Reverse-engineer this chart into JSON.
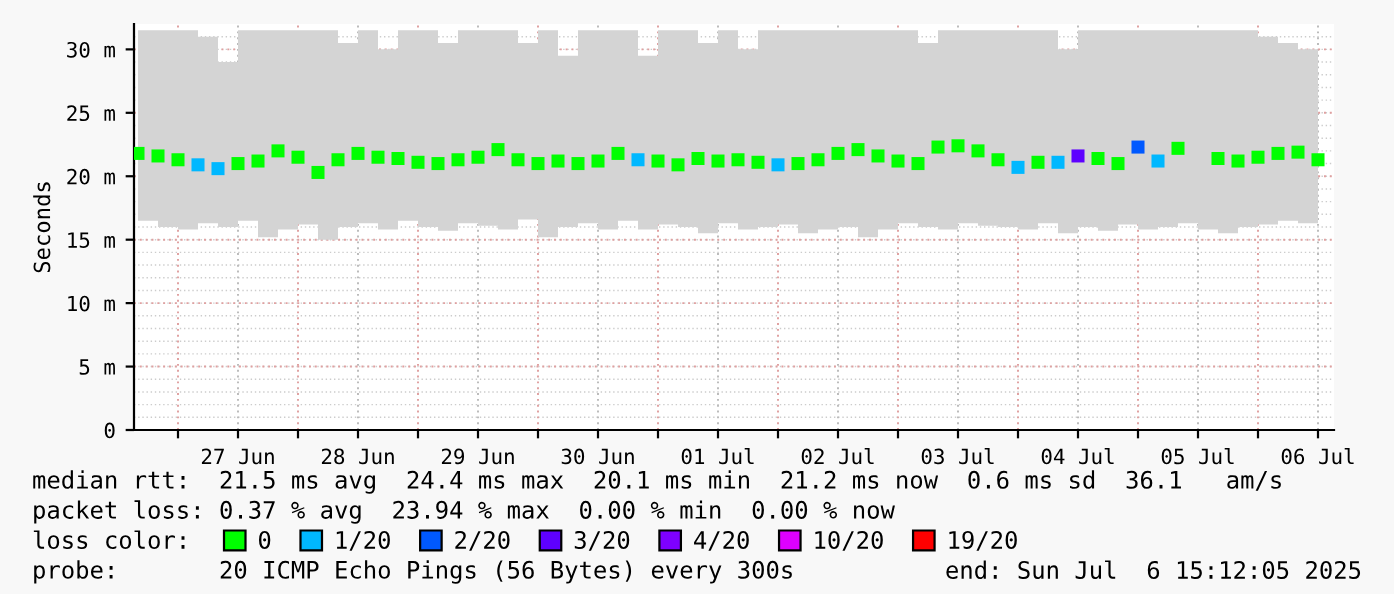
{
  "chart_data": {
    "type": "scatter",
    "marker": "square",
    "ylabel": "Seconds",
    "legend_title": "loss color:",
    "legend": "bottom",
    "grid": true,
    "x": [
      "2025-06-26T16:00",
      "2025-06-26T20:00",
      "2025-06-27T00:00",
      "2025-06-27T04:00",
      "2025-06-27T08:00",
      "2025-06-27T12:00",
      "2025-06-27T16:00",
      "2025-06-27T20:00",
      "2025-06-28T00:00",
      "2025-06-28T04:00",
      "2025-06-28T08:00",
      "2025-06-28T12:00",
      "2025-06-28T16:00",
      "2025-06-28T20:00",
      "2025-06-29T00:00",
      "2025-06-29T04:00",
      "2025-06-29T08:00",
      "2025-06-29T12:00",
      "2025-06-29T16:00",
      "2025-06-29T20:00",
      "2025-06-30T00:00",
      "2025-06-30T04:00",
      "2025-06-30T08:00",
      "2025-06-30T12:00",
      "2025-06-30T16:00",
      "2025-06-30T20:00",
      "2025-07-01T00:00",
      "2025-07-01T04:00",
      "2025-07-01T08:00",
      "2025-07-01T12:00",
      "2025-07-01T16:00",
      "2025-07-01T20:00",
      "2025-07-02T00:00",
      "2025-07-02T04:00",
      "2025-07-02T08:00",
      "2025-07-02T12:00",
      "2025-07-02T16:00",
      "2025-07-02T20:00",
      "2025-07-03T00:00",
      "2025-07-03T04:00",
      "2025-07-03T08:00",
      "2025-07-03T12:00",
      "2025-07-03T16:00",
      "2025-07-03T20:00",
      "2025-07-04T00:00",
      "2025-07-04T04:00",
      "2025-07-04T08:00",
      "2025-07-04T12:00",
      "2025-07-04T16:00",
      "2025-07-04T20:00",
      "2025-07-05T00:00",
      "2025-07-05T04:00",
      "2025-07-05T08:00",
      "2025-07-05T12:00",
      "2025-07-05T16:00",
      "2025-07-05T20:00",
      "2025-07-06T00:00",
      "2025-07-06T04:00",
      "2025-07-06T08:00",
      "2025-07-06T12:00"
    ],
    "series": [
      {
        "name": "0",
        "color": "#00ff00",
        "values": [
          21.8,
          21.6,
          21.3,
          null,
          null,
          21.0,
          21.2,
          22.0,
          21.5,
          20.3,
          21.3,
          21.8,
          21.5,
          21.4,
          21.1,
          21.0,
          21.3,
          21.5,
          22.1,
          21.3,
          21.0,
          21.2,
          21.0,
          21.2,
          21.8,
          null,
          21.2,
          20.9,
          21.4,
          21.2,
          21.3,
          21.1,
          null,
          21.0,
          21.3,
          21.8,
          22.1,
          21.6,
          21.2,
          21.0,
          22.3,
          22.4,
          22.0,
          21.3,
          null,
          21.1,
          null,
          null,
          21.4,
          21.0,
          null,
          null,
          22.2,
          null,
          21.4,
          21.2,
          21.5,
          21.8,
          21.9,
          21.3
        ],
        "lower": [
          16.5,
          16.0,
          15.8,
          16.3,
          16.0,
          16.5,
          15.2,
          15.8,
          16.2,
          15.0,
          16.0,
          16.3,
          15.8,
          16.5,
          16.0,
          15.7,
          16.3,
          16.1,
          15.8,
          16.6,
          15.2,
          16.0,
          16.3,
          15.8,
          16.5,
          15.8,
          16.2,
          16.0,
          15.5,
          16.3,
          15.8,
          16.0,
          16.2,
          15.5,
          15.8,
          16.0,
          15.2,
          15.8,
          16.3,
          16.0,
          15.8,
          16.3,
          16.1,
          16.0,
          15.8,
          16.3,
          15.5,
          16.0,
          15.7,
          16.2,
          15.8,
          16.0,
          16.3,
          15.8,
          15.5,
          16.0,
          16.2,
          16.5,
          16.3,
          16.5
        ],
        "upper": [
          31.5,
          31.5,
          31.5,
          31.0,
          29.0,
          31.5,
          31.5,
          31.5,
          31.5,
          31.5,
          30.5,
          31.5,
          30.0,
          31.5,
          31.5,
          30.5,
          31.5,
          31.5,
          31.5,
          30.5,
          31.5,
          29.5,
          31.5,
          31.5,
          31.5,
          29.5,
          31.5,
          31.5,
          30.5,
          31.5,
          30.0,
          31.5,
          31.5,
          31.5,
          31.5,
          31.5,
          31.5,
          31.5,
          31.5,
          30.5,
          31.5,
          31.5,
          31.5,
          31.5,
          31.5,
          31.5,
          30.0,
          31.5,
          31.5,
          31.5,
          31.5,
          31.5,
          31.5,
          31.5,
          31.5,
          31.5,
          31.0,
          30.5,
          30.0,
          29.0
        ]
      },
      {
        "name": "1/20",
        "color": "#00b8ff",
        "values": [
          null,
          null,
          null,
          20.9,
          20.6,
          null,
          null,
          null,
          null,
          null,
          null,
          null,
          null,
          null,
          null,
          null,
          null,
          null,
          null,
          null,
          null,
          null,
          null,
          null,
          null,
          21.3,
          null,
          null,
          null,
          null,
          null,
          null,
          20.9,
          null,
          null,
          null,
          null,
          null,
          null,
          null,
          null,
          null,
          null,
          null,
          20.7,
          null,
          21.1,
          null,
          null,
          null,
          null,
          21.2,
          null,
          null,
          null,
          null,
          null,
          null,
          null,
          null
        ]
      },
      {
        "name": "2/20",
        "color": "#0059ff",
        "values": [
          null,
          null,
          null,
          null,
          null,
          null,
          null,
          null,
          null,
          null,
          null,
          null,
          null,
          null,
          null,
          null,
          null,
          null,
          null,
          null,
          null,
          null,
          null,
          null,
          null,
          null,
          null,
          null,
          null,
          null,
          null,
          null,
          null,
          null,
          null,
          null,
          null,
          null,
          null,
          null,
          null,
          null,
          null,
          null,
          null,
          null,
          null,
          null,
          null,
          null,
          22.3,
          null,
          null,
          null,
          null,
          null,
          null,
          null,
          null,
          null
        ]
      },
      {
        "name": "3/20",
        "color": "#5e00ff",
        "values": [
          null,
          null,
          null,
          null,
          null,
          null,
          null,
          null,
          null,
          null,
          null,
          null,
          null,
          null,
          null,
          null,
          null,
          null,
          null,
          null,
          null,
          null,
          null,
          null,
          null,
          null,
          null,
          null,
          null,
          null,
          null,
          null,
          null,
          null,
          null,
          null,
          null,
          null,
          null,
          null,
          null,
          null,
          null,
          null,
          null,
          null,
          null,
          21.6,
          null,
          null,
          null,
          null,
          null,
          null,
          null,
          null,
          null,
          null,
          null,
          null
        ]
      },
      {
        "name": "4/20",
        "color": "#7e00ff",
        "values": [
          null,
          null,
          null,
          null,
          null,
          null,
          null,
          null,
          null,
          null,
          null,
          null,
          null,
          null,
          null,
          null,
          null,
          null,
          null,
          null,
          null,
          null,
          null,
          null,
          null,
          null,
          null,
          null,
          null,
          null,
          null,
          null,
          null,
          null,
          null,
          null,
          null,
          null,
          null,
          null,
          null,
          null,
          null,
          null,
          null,
          null,
          null,
          null,
          null,
          null,
          null,
          null,
          null,
          null,
          null,
          null,
          null,
          null,
          null,
          null
        ]
      },
      {
        "name": "10/20",
        "color": "#dd00ff",
        "values": [
          null,
          null,
          null,
          null,
          null,
          null,
          null,
          null,
          null,
          null,
          null,
          null,
          null,
          null,
          null,
          null,
          null,
          null,
          null,
          null,
          null,
          null,
          null,
          null,
          null,
          null,
          null,
          null,
          null,
          null,
          null,
          null,
          null,
          null,
          null,
          null,
          null,
          null,
          null,
          null,
          null,
          null,
          null,
          null,
          null,
          null,
          null,
          null,
          null,
          null,
          null,
          null,
          null,
          null,
          null,
          null,
          null,
          null,
          null,
          null
        ]
      },
      {
        "name": "19/20",
        "color": "#ff0000",
        "values": [
          null,
          null,
          null,
          null,
          null,
          null,
          null,
          null,
          null,
          null,
          null,
          null,
          null,
          null,
          null,
          null,
          null,
          null,
          null,
          null,
          null,
          null,
          null,
          null,
          null,
          null,
          null,
          null,
          null,
          null,
          null,
          null,
          null,
          null,
          null,
          null,
          null,
          null,
          null,
          null,
          null,
          null,
          null,
          null,
          null,
          null,
          null,
          null,
          null,
          null,
          null,
          null,
          null,
          null,
          null,
          null,
          null,
          null,
          null,
          null
        ]
      }
    ],
    "xlim": [
      "2025-06-26T15:12",
      "2025-07-06T15:12"
    ],
    "xticks": [
      {
        "value": "2025-06-27T00:00",
        "label": null
      },
      {
        "value": "2025-06-27T12:00",
        "label": "27 Jun"
      },
      {
        "value": "2025-06-28T00:00",
        "label": null
      },
      {
        "value": "2025-06-28T12:00",
        "label": "28 Jun"
      },
      {
        "value": "2025-06-29T00:00",
        "label": null
      },
      {
        "value": "2025-06-29T12:00",
        "label": "29 Jun"
      },
      {
        "value": "2025-06-30T00:00",
        "label": null
      },
      {
        "value": "2025-06-30T12:00",
        "label": "30 Jun"
      },
      {
        "value": "2025-07-01T00:00",
        "label": null
      },
      {
        "value": "2025-07-01T12:00",
        "label": "01 Jul"
      },
      {
        "value": "2025-07-02T00:00",
        "label": null
      },
      {
        "value": "2025-07-02T12:00",
        "label": "02 Jul"
      },
      {
        "value": "2025-07-03T00:00",
        "label": null
      },
      {
        "value": "2025-07-03T12:00",
        "label": "03 Jul"
      },
      {
        "value": "2025-07-04T00:00",
        "label": null
      },
      {
        "value": "2025-07-04T12:00",
        "label": "04 Jul"
      },
      {
        "value": "2025-07-05T00:00",
        "label": null
      },
      {
        "value": "2025-07-05T12:00",
        "label": "05 Jul"
      },
      {
        "value": "2025-07-06T00:00",
        "label": null
      },
      {
        "value": "2025-07-06T12:00",
        "label": "06 Jul"
      }
    ],
    "ylim": [
      0,
      32
    ],
    "yticks": [
      0,
      {
        "value": 5,
        "label": "5 m"
      },
      {
        "value": 10,
        "label": "10 m"
      },
      {
        "value": 15,
        "label": "15 m"
      },
      {
        "value": 20,
        "label": "20 m"
      },
      {
        "value": 25,
        "label": "25 m"
      },
      {
        "value": 30,
        "label": "30 m"
      }
    ],
    "annotations": [
      "median rtt:  21.5 ms avg  24.4 ms max  20.1 ms min  21.2 ms now  0.6 ms sd  36.1   am/s",
      "packet loss: 0.37 % avg  23.94 % max  0.00 % min  0.00 % now",
      "probe:       20 ICMP Echo Pings (56 Bytes) every 300s",
      "end: Sun Jul  6 15:12:05 2025"
    ]
  }
}
